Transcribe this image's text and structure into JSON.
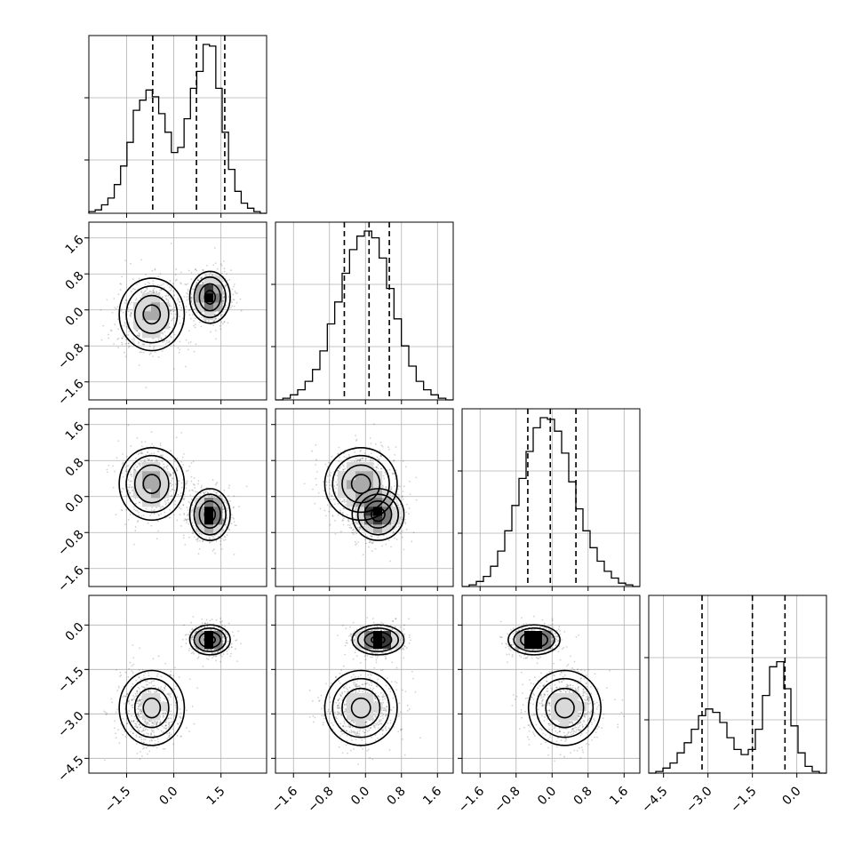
{
  "chart_data": {
    "type": "corner",
    "title": "",
    "grid": true,
    "colors": {
      "line": "#000000",
      "grid": "#b0b0b0",
      "points": "#000000"
    },
    "parameters": [
      {
        "ticks": [
          -1.5,
          0.0,
          1.5
        ],
        "tick_labels": [
          "−1.5",
          "0.0",
          "1.5"
        ],
        "range": [
          -2.7,
          2.95
        ],
        "quantiles": [
          -0.67,
          0.72,
          1.62
        ]
      },
      {
        "ticks": [
          -1.6,
          -0.8,
          0.0,
          0.8,
          1.6
        ],
        "tick_labels": [
          "−1.6",
          "−0.8",
          "0.0",
          "0.8",
          "1.6"
        ],
        "range": [
          -2.0,
          1.95
        ],
        "quantiles": [
          -0.47,
          0.08,
          0.53
        ]
      },
      {
        "ticks": [
          -1.6,
          -0.8,
          0.0,
          0.8,
          1.6
        ],
        "tick_labels": [
          "−1.6",
          "−0.8",
          "0.0",
          "0.8",
          "1.6"
        ],
        "range": [
          -2.0,
          1.95
        ],
        "quantiles": [
          -0.54,
          -0.04,
          0.53
        ]
      },
      {
        "ticks": [
          -4.5,
          -3.0,
          -1.5,
          0.0
        ],
        "tick_labels": [
          "−4.5",
          "−3.0",
          "−1.5",
          "0.0"
        ],
        "range": [
          -5.0,
          1.0
        ],
        "quantiles": [
          -3.2,
          -1.5,
          -0.4
        ]
      }
    ],
    "histograms": [
      [
        0.01,
        0.02,
        0.05,
        0.09,
        0.17,
        0.28,
        0.42,
        0.61,
        0.67,
        0.73,
        0.69,
        0.59,
        0.48,
        0.36,
        0.39,
        0.56,
        0.74,
        0.84,
        1.0,
        0.99,
        0.74,
        0.48,
        0.26,
        0.13,
        0.06,
        0.03,
        0.01,
        0.0
      ],
      [
        0.0,
        0.01,
        0.03,
        0.06,
        0.11,
        0.18,
        0.29,
        0.45,
        0.58,
        0.75,
        0.89,
        0.97,
        1.0,
        0.96,
        0.84,
        0.66,
        0.48,
        0.32,
        0.2,
        0.11,
        0.06,
        0.03,
        0.01,
        0.0
      ],
      [
        0.0,
        0.01,
        0.03,
        0.06,
        0.12,
        0.21,
        0.33,
        0.48,
        0.64,
        0.8,
        0.94,
        1.0,
        0.99,
        0.92,
        0.79,
        0.62,
        0.46,
        0.33,
        0.23,
        0.15,
        0.09,
        0.05,
        0.02,
        0.01,
        0.0
      ],
      [
        0.0,
        0.01,
        0.03,
        0.06,
        0.12,
        0.18,
        0.26,
        0.34,
        0.38,
        0.36,
        0.3,
        0.21,
        0.14,
        0.11,
        0.14,
        0.26,
        0.46,
        0.63,
        0.66,
        0.5,
        0.28,
        0.12,
        0.04,
        0.01,
        0.0
      ]
    ],
    "joint_components": [
      {
        "w": 0.5,
        "mean": [
          -0.7,
          -0.1,
          0.28,
          -2.8
        ],
        "sd": [
          0.45,
          0.35,
          0.35,
          0.55
        ]
      },
      {
        "w": 0.5,
        "mean": [
          1.15,
          0.28,
          -0.4,
          -0.5
        ],
        "sd": [
          0.28,
          0.25,
          0.25,
          0.22
        ]
      }
    ]
  }
}
